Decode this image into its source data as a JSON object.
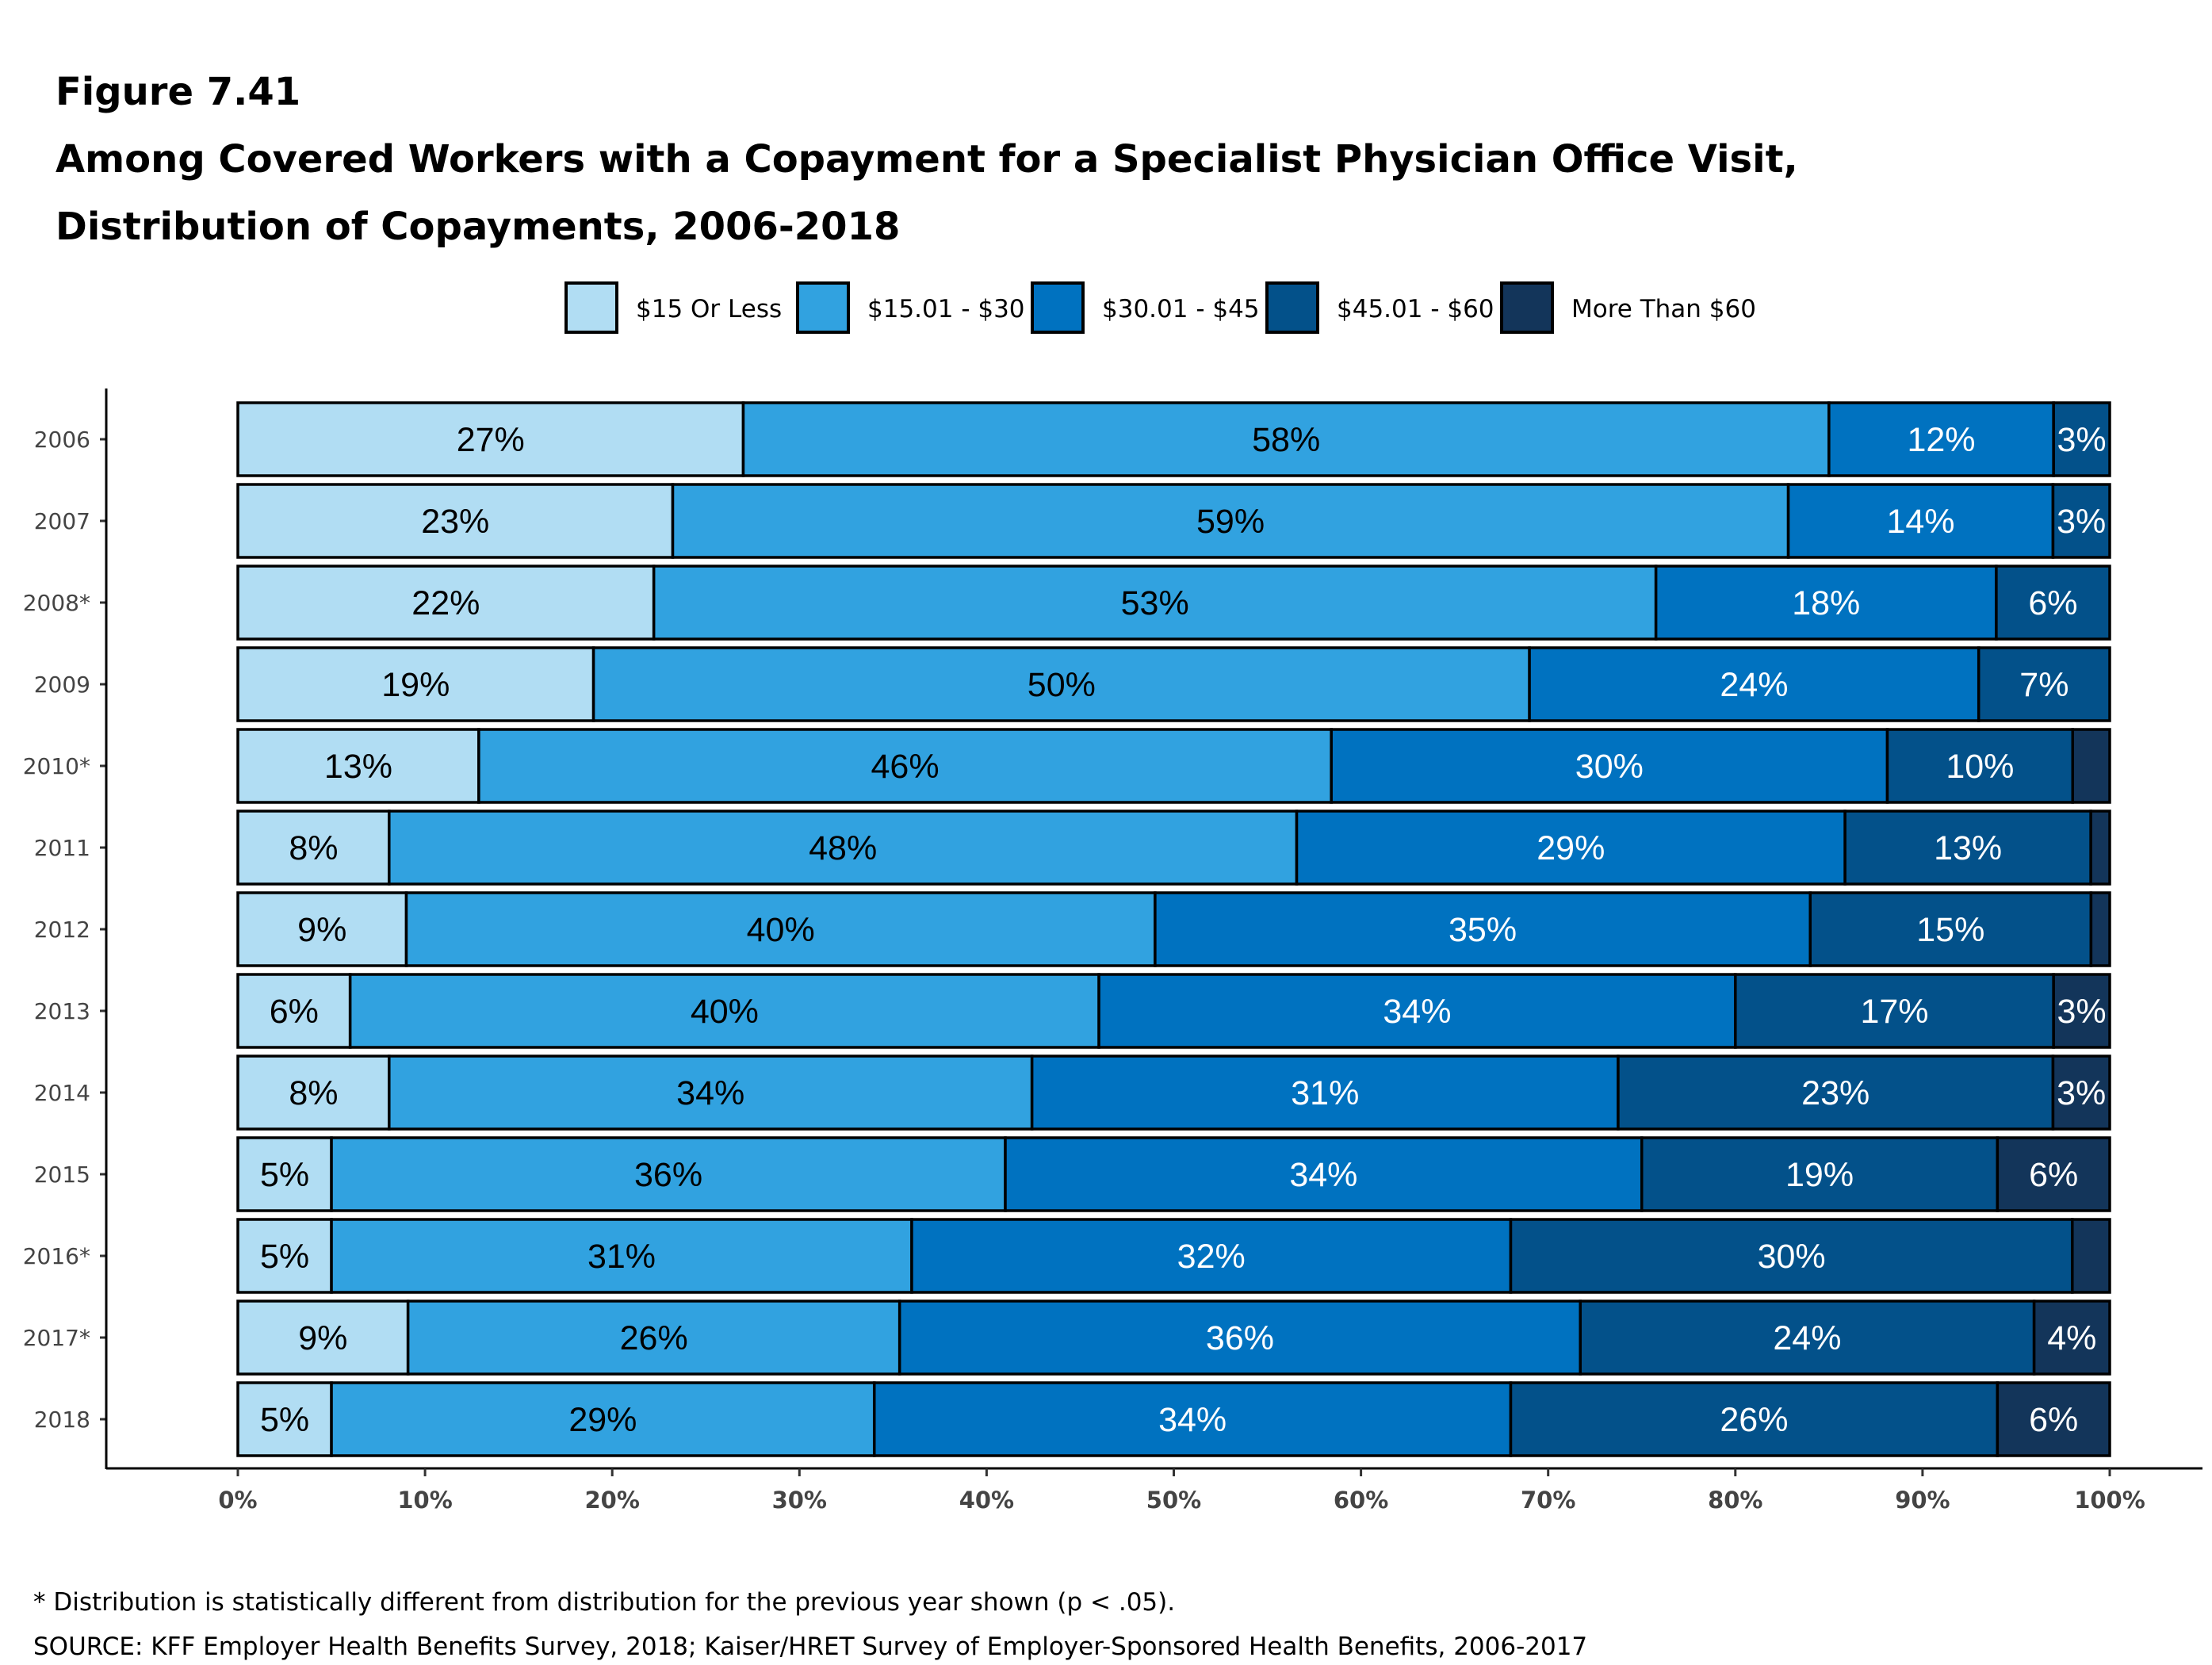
{
  "figure_label": "Figure 7.41",
  "title_line1": "Among Covered Workers with a Copayment for a Specialist Physician Office Visit,",
  "title_line2": "Distribution of Copayments, 2006-2018",
  "footnote": "* Distribution is statistically different from distribution for the previous year shown (p < .05).",
  "source": "SOURCE: KFF Employer Health Benefits Survey, 2018; Kaiser/HRET Survey of Employer-Sponsored Health Benefits, 2006-2017",
  "chart_data": {
    "type": "bar",
    "orientation": "horizontal",
    "stacked": true,
    "legend_position": "top",
    "grid": false,
    "xlim": [
      0,
      100
    ],
    "x_ticks": [
      "0%",
      "10%",
      "20%",
      "30%",
      "40%",
      "50%",
      "60%",
      "70%",
      "80%",
      "90%",
      "100%"
    ],
    "categories": [
      "2006",
      "2007",
      "2008*",
      "2009",
      "2010*",
      "2011",
      "2012",
      "2013",
      "2014",
      "2015",
      "2016*",
      "2017*",
      "2018"
    ],
    "series": [
      {
        "name": "$15 Or Less",
        "color": "#b1ddf3",
        "label_color": "#000000",
        "values": [
          27,
          23,
          22,
          19,
          13,
          8,
          9,
          6,
          8,
          5,
          5,
          9,
          5
        ],
        "labels": [
          "27%",
          "23%",
          "22%",
          "19%",
          "13%",
          "8%",
          "9%",
          "6%",
          "8%",
          "5%",
          "5%",
          "9%",
          "5%"
        ]
      },
      {
        "name": "$15.01 - $30",
        "color": "#31a2e0",
        "label_color": "#000000",
        "values": [
          58,
          59,
          53,
          50,
          46,
          48,
          40,
          40,
          34,
          36,
          31,
          26,
          29
        ],
        "labels": [
          "58%",
          "59%",
          "53%",
          "50%",
          "46%",
          "48%",
          "40%",
          "40%",
          "34%",
          "36%",
          "31%",
          "26%",
          "29%"
        ]
      },
      {
        "name": "$30.01 - $45",
        "color": "#0072c0",
        "label_color": "#ffffff",
        "values": [
          12,
          14,
          18,
          24,
          30,
          29,
          35,
          34,
          31,
          34,
          32,
          36,
          34
        ],
        "labels": [
          "12%",
          "14%",
          "18%",
          "24%",
          "30%",
          "29%",
          "35%",
          "34%",
          "31%",
          "34%",
          "32%",
          "36%",
          "34%"
        ]
      },
      {
        "name": "$45.01 - $60",
        "color": "#03518a",
        "label_color": "#ffffff",
        "values": [
          3,
          3,
          6,
          7,
          10,
          13,
          15,
          17,
          23,
          19,
          30,
          24,
          26
        ],
        "labels": [
          "3%",
          "3%",
          "6%",
          "7%",
          "10%",
          "13%",
          "15%",
          "17%",
          "23%",
          "19%",
          "30%",
          "24%",
          "26%"
        ]
      },
      {
        "name": "More Than $60",
        "color": "#13355a",
        "label_color": "#ffffff",
        "values": [
          0,
          0,
          0,
          0,
          2,
          1,
          1,
          3,
          3,
          6,
          2,
          4,
          6
        ],
        "labels": [
          "",
          "",
          "",
          "",
          "",
          "",
          "",
          "3%",
          "3%",
          "6%",
          "",
          "4%",
          "6%"
        ]
      }
    ]
  }
}
